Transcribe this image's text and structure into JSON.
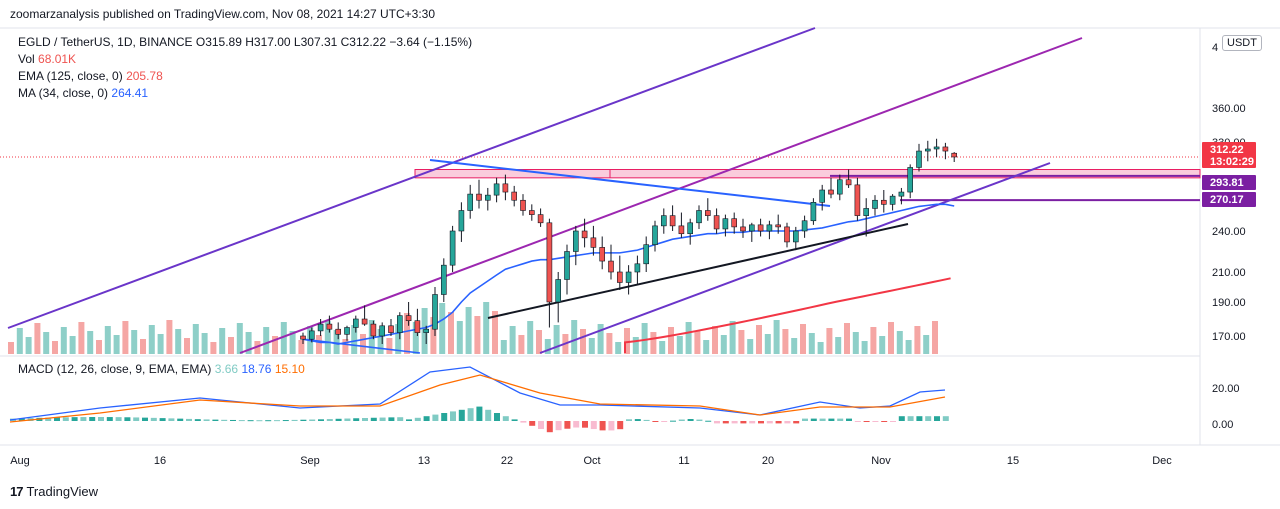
{
  "header": {
    "published": "zoomarzanalysis published on TradingView.com, Nov 08, 2021 14:27 UTC+3:30"
  },
  "legend": {
    "symbol": "EGLD / TetherUS, 1D, BINANCE",
    "ohlc": "O315.89 H317.00 L307.31 C312.22 −3.64 (−1.15%)",
    "vol_label": "Vol",
    "vol_value": "68.01K",
    "ema_label": "EMA (125, close, 0)",
    "ema_value": "205.78",
    "ma_label": "MA (34, close, 0)",
    "ma_value": "264.41"
  },
  "macd_legend": {
    "label": "MACD (12, 26, close, 9, EMA, EMA)",
    "hist": "3.66",
    "macd": "18.76",
    "signal": "15.10"
  },
  "currency_button": "USDT",
  "watermark": "TradingView",
  "colors": {
    "up": "#26a69a",
    "down": "#ef5350",
    "vol_up": "#8ecfc8",
    "vol_down": "#f5a6a4",
    "ema125": "#f23645",
    "ma34": "#2962ff",
    "channel": "#7b1fa2",
    "zone": "#f8bbd0"
  },
  "chart_data": {
    "type": "candlestick",
    "title": "EGLD / TetherUS, 1D, BINANCE",
    "price_axis_ticks": [
      "4",
      "360.00",
      "330.00",
      "240.00",
      "210.00",
      "190.00",
      "170.00"
    ],
    "price_tags": [
      {
        "label": "312.22",
        "sub": "13:02:29",
        "color": "#f23645"
      },
      {
        "label": "293.81",
        "color": "#7b1fa2"
      },
      {
        "label": "270.17",
        "color": "#7b1fa2"
      }
    ],
    "time_axis_ticks": [
      "Aug",
      "16",
      "Sep",
      "13",
      "22",
      "Oct",
      "11",
      "20",
      "Nov",
      "15",
      "Dec"
    ],
    "macd_axis_ticks": [
      "20.00",
      "0.00"
    ],
    "ylim": [
      160,
      410
    ],
    "candles": [
      [
        170,
        172,
        165,
        168
      ],
      [
        168,
        175,
        166,
        173
      ],
      [
        173,
        180,
        170,
        177
      ],
      [
        177,
        182,
        172,
        174
      ],
      [
        174,
        178,
        168,
        171
      ],
      [
        171,
        176,
        167,
        175
      ],
      [
        175,
        182,
        172,
        180
      ],
      [
        180,
        188,
        176,
        177
      ],
      [
        177,
        179,
        168,
        170
      ],
      [
        170,
        178,
        165,
        176
      ],
      [
        176,
        180,
        170,
        172
      ],
      [
        172,
        184,
        168,
        182
      ],
      [
        182,
        190,
        176,
        179
      ],
      [
        179,
        186,
        170,
        172
      ],
      [
        172,
        176,
        165,
        174
      ],
      [
        174,
        200,
        170,
        195
      ],
      [
        195,
        220,
        190,
        215
      ],
      [
        215,
        245,
        210,
        240
      ],
      [
        240,
        268,
        232,
        260
      ],
      [
        260,
        285,
        252,
        276
      ],
      [
        276,
        290,
        262,
        270
      ],
      [
        270,
        282,
        260,
        275
      ],
      [
        275,
        292,
        268,
        286
      ],
      [
        286,
        295,
        270,
        278
      ],
      [
        278,
        284,
        264,
        270
      ],
      [
        270,
        276,
        255,
        260
      ],
      [
        260,
        266,
        250,
        256
      ],
      [
        256,
        262,
        244,
        248
      ],
      [
        248,
        252,
        175,
        190
      ],
      [
        190,
        210,
        178,
        205
      ],
      [
        205,
        230,
        195,
        225
      ],
      [
        225,
        245,
        215,
        240
      ],
      [
        240,
        252,
        228,
        235
      ],
      [
        235,
        245,
        222,
        228
      ],
      [
        228,
        236,
        212,
        218
      ],
      [
        218,
        230,
        205,
        210
      ],
      [
        210,
        222,
        198,
        203
      ],
      [
        203,
        215,
        195,
        210
      ],
      [
        210,
        222,
        202,
        216
      ],
      [
        216,
        236,
        210,
        230
      ],
      [
        230,
        250,
        225,
        245
      ],
      [
        245,
        262,
        238,
        255
      ],
      [
        255,
        265,
        240,
        245
      ],
      [
        245,
        258,
        235,
        238
      ],
      [
        238,
        252,
        230,
        248
      ],
      [
        248,
        265,
        242,
        260
      ],
      [
        260,
        272,
        250,
        255
      ],
      [
        255,
        262,
        238,
        242
      ],
      [
        242,
        256,
        236,
        252
      ],
      [
        252,
        258,
        238,
        244
      ],
      [
        244,
        252,
        235,
        240
      ],
      [
        240,
        248,
        232,
        246
      ],
      [
        246,
        252,
        236,
        240
      ],
      [
        240,
        250,
        234,
        246
      ],
      [
        246,
        256,
        238,
        244
      ],
      [
        244,
        248,
        228,
        232
      ],
      [
        232,
        244,
        226,
        240
      ],
      [
        240,
        255,
        235,
        250
      ],
      [
        250,
        272,
        246,
        268
      ],
      [
        268,
        285,
        260,
        280
      ],
      [
        280,
        292,
        272,
        276
      ],
      [
        276,
        295,
        270,
        290
      ],
      [
        290,
        300,
        282,
        285
      ],
      [
        285,
        292,
        250,
        255
      ],
      [
        255,
        272,
        236,
        262
      ],
      [
        262,
        275,
        255,
        270
      ],
      [
        270,
        280,
        258,
        266
      ],
      [
        266,
        276,
        260,
        274
      ],
      [
        274,
        282,
        266,
        278
      ],
      [
        278,
        305,
        272,
        302
      ],
      [
        302,
        325,
        298,
        318
      ],
      [
        318,
        328,
        308,
        320
      ],
      [
        320,
        330,
        312,
        322
      ],
      [
        322,
        326,
        310,
        318
      ],
      [
        315.89,
        317,
        307.31,
        312.22
      ]
    ]
  }
}
